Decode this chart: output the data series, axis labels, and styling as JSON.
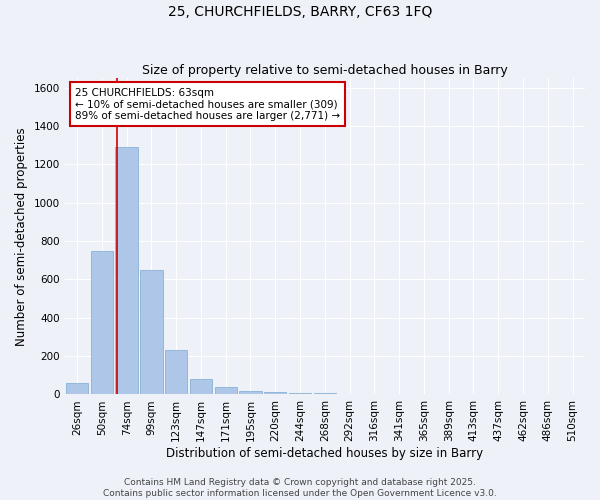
{
  "title": "25, CHURCHFIELDS, BARRY, CF63 1FQ",
  "subtitle": "Size of property relative to semi-detached houses in Barry",
  "xlabel": "Distribution of semi-detached houses by size in Barry",
  "ylabel": "Number of semi-detached properties",
  "bar_labels": [
    "26sqm",
    "50sqm",
    "74sqm",
    "99sqm",
    "123sqm",
    "147sqm",
    "171sqm",
    "195sqm",
    "220sqm",
    "244sqm",
    "268sqm",
    "292sqm",
    "316sqm",
    "341sqm",
    "365sqm",
    "389sqm",
    "413sqm",
    "437sqm",
    "462sqm",
    "486sqm",
    "510sqm"
  ],
  "bar_values": [
    60,
    750,
    1290,
    650,
    230,
    80,
    40,
    20,
    15,
    8,
    10,
    0,
    0,
    0,
    0,
    0,
    0,
    0,
    0,
    0,
    0
  ],
  "bar_color": "#aec6e8",
  "bar_edge_color": "#7aaad0",
  "red_line_x": 1.62,
  "annotation_text": "25 CHURCHFIELDS: 63sqm\n← 10% of semi-detached houses are smaller (309)\n89% of semi-detached houses are larger (2,771) →",
  "annotation_box_color": "#ffffff",
  "annotation_border_color": "#cc0000",
  "ylim": [
    0,
    1650
  ],
  "yticks": [
    0,
    200,
    400,
    600,
    800,
    1000,
    1200,
    1400,
    1600
  ],
  "footer_line1": "Contains HM Land Registry data © Crown copyright and database right 2025.",
  "footer_line2": "Contains public sector information licensed under the Open Government Licence v3.0.",
  "bg_color": "#eef2f8",
  "grid_color": "#ffffff",
  "title_fontsize": 10,
  "subtitle_fontsize": 9,
  "axis_label_fontsize": 8.5,
  "tick_fontsize": 7.5,
  "annotation_fontsize": 7.5,
  "footer_fontsize": 6.5
}
